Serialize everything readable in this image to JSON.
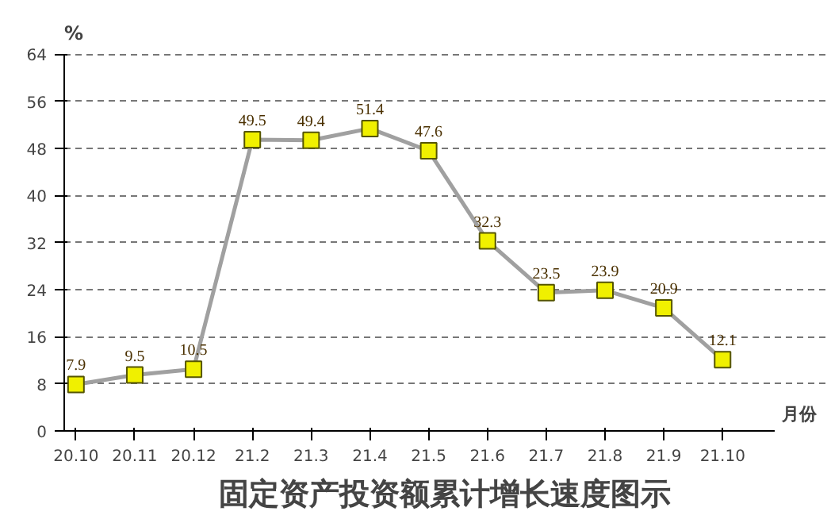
{
  "chart_data": {
    "type": "line",
    "title": "固定资产投资额累计增长速度图示",
    "xlabel": "月份",
    "ylabel": "%",
    "categories": [
      "20.10",
      "20.11",
      "20.12",
      "21.2",
      "21.3",
      "21.4",
      "21.5",
      "21.6",
      "21.7",
      "21.8",
      "21.9",
      "21.10"
    ],
    "series": [
      {
        "color": "#a0a0a0",
        "colors": [
          "#f0f000",
          "#f0f000",
          "#f0f000",
          "#f0f000",
          "#f0f000",
          "#f0f000",
          "#f0f000",
          "#f0f000",
          "#f0f000",
          "#f0f000",
          "#f0f000",
          "#f0f000"
        ],
        "values": [
          7.9,
          9.5,
          10.5,
          49.5,
          49.4,
          51.4,
          47.6,
          32.3,
          23.5,
          23.9,
          20.9,
          12.1
        ]
      }
    ],
    "ylim": [
      0,
      64
    ],
    "yticks": [
      0,
      8,
      16,
      24,
      32,
      40,
      48,
      56,
      64
    ],
    "grid": "y",
    "marker": "square",
    "line_style": "solid",
    "data_labels": true
  }
}
